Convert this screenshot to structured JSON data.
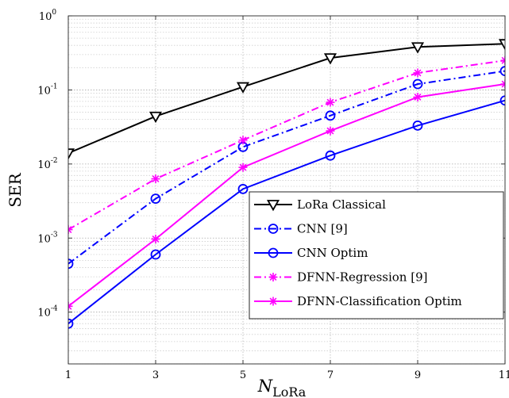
{
  "chart_data": {
    "type": "line",
    "title": "",
    "xlabel": {
      "base": "N",
      "subscript": "LoRa"
    },
    "ylabel": "SER",
    "yscale": "log",
    "xlim": [
      1,
      11
    ],
    "ylim": [
      2e-05,
      1
    ],
    "x_ticks": [
      "1",
      "3",
      "5",
      "7",
      "9",
      "11"
    ],
    "y_ticks": [
      {
        "base": "10",
        "exp": "0",
        "value": 1
      },
      {
        "base": "10",
        "exp": "-1",
        "value": 0.1
      },
      {
        "base": "10",
        "exp": "-2",
        "value": 0.01
      },
      {
        "base": "10",
        "exp": "-3",
        "value": 0.001
      },
      {
        "base": "10",
        "exp": "-4",
        "value": 0.0001
      }
    ],
    "grid": true,
    "legend_position": "lower-right",
    "x": [
      1,
      3,
      5,
      7,
      9,
      11
    ],
    "series": [
      {
        "name": "LoRa Classical",
        "color": "#000000",
        "dash": "solid",
        "marker": "triangle-down",
        "values": [
          0.014,
          0.044,
          0.11,
          0.27,
          0.38,
          0.42
        ]
      },
      {
        "name": "CNN [9]",
        "color": "#0000ff",
        "dash": "dashdot",
        "marker": "circle",
        "values": [
          0.00045,
          0.0034,
          0.017,
          0.045,
          0.12,
          0.18
        ]
      },
      {
        "name": "CNN Optim",
        "color": "#0000ff",
        "dash": "solid",
        "marker": "circle",
        "values": [
          7e-05,
          0.0006,
          0.0046,
          0.013,
          0.033,
          0.072
        ]
      },
      {
        "name": "DFNN-Regression [9]",
        "color": "#ff00ff",
        "dash": "dashdot",
        "marker": "asterisk",
        "values": [
          0.0013,
          0.0063,
          0.021,
          0.068,
          0.17,
          0.25
        ]
      },
      {
        "name": "DFNN-Classification Optim",
        "color": "#ff00ff",
        "dash": "solid",
        "marker": "asterisk",
        "values": [
          0.00012,
          0.00097,
          0.009,
          0.028,
          0.08,
          0.12
        ]
      }
    ]
  }
}
